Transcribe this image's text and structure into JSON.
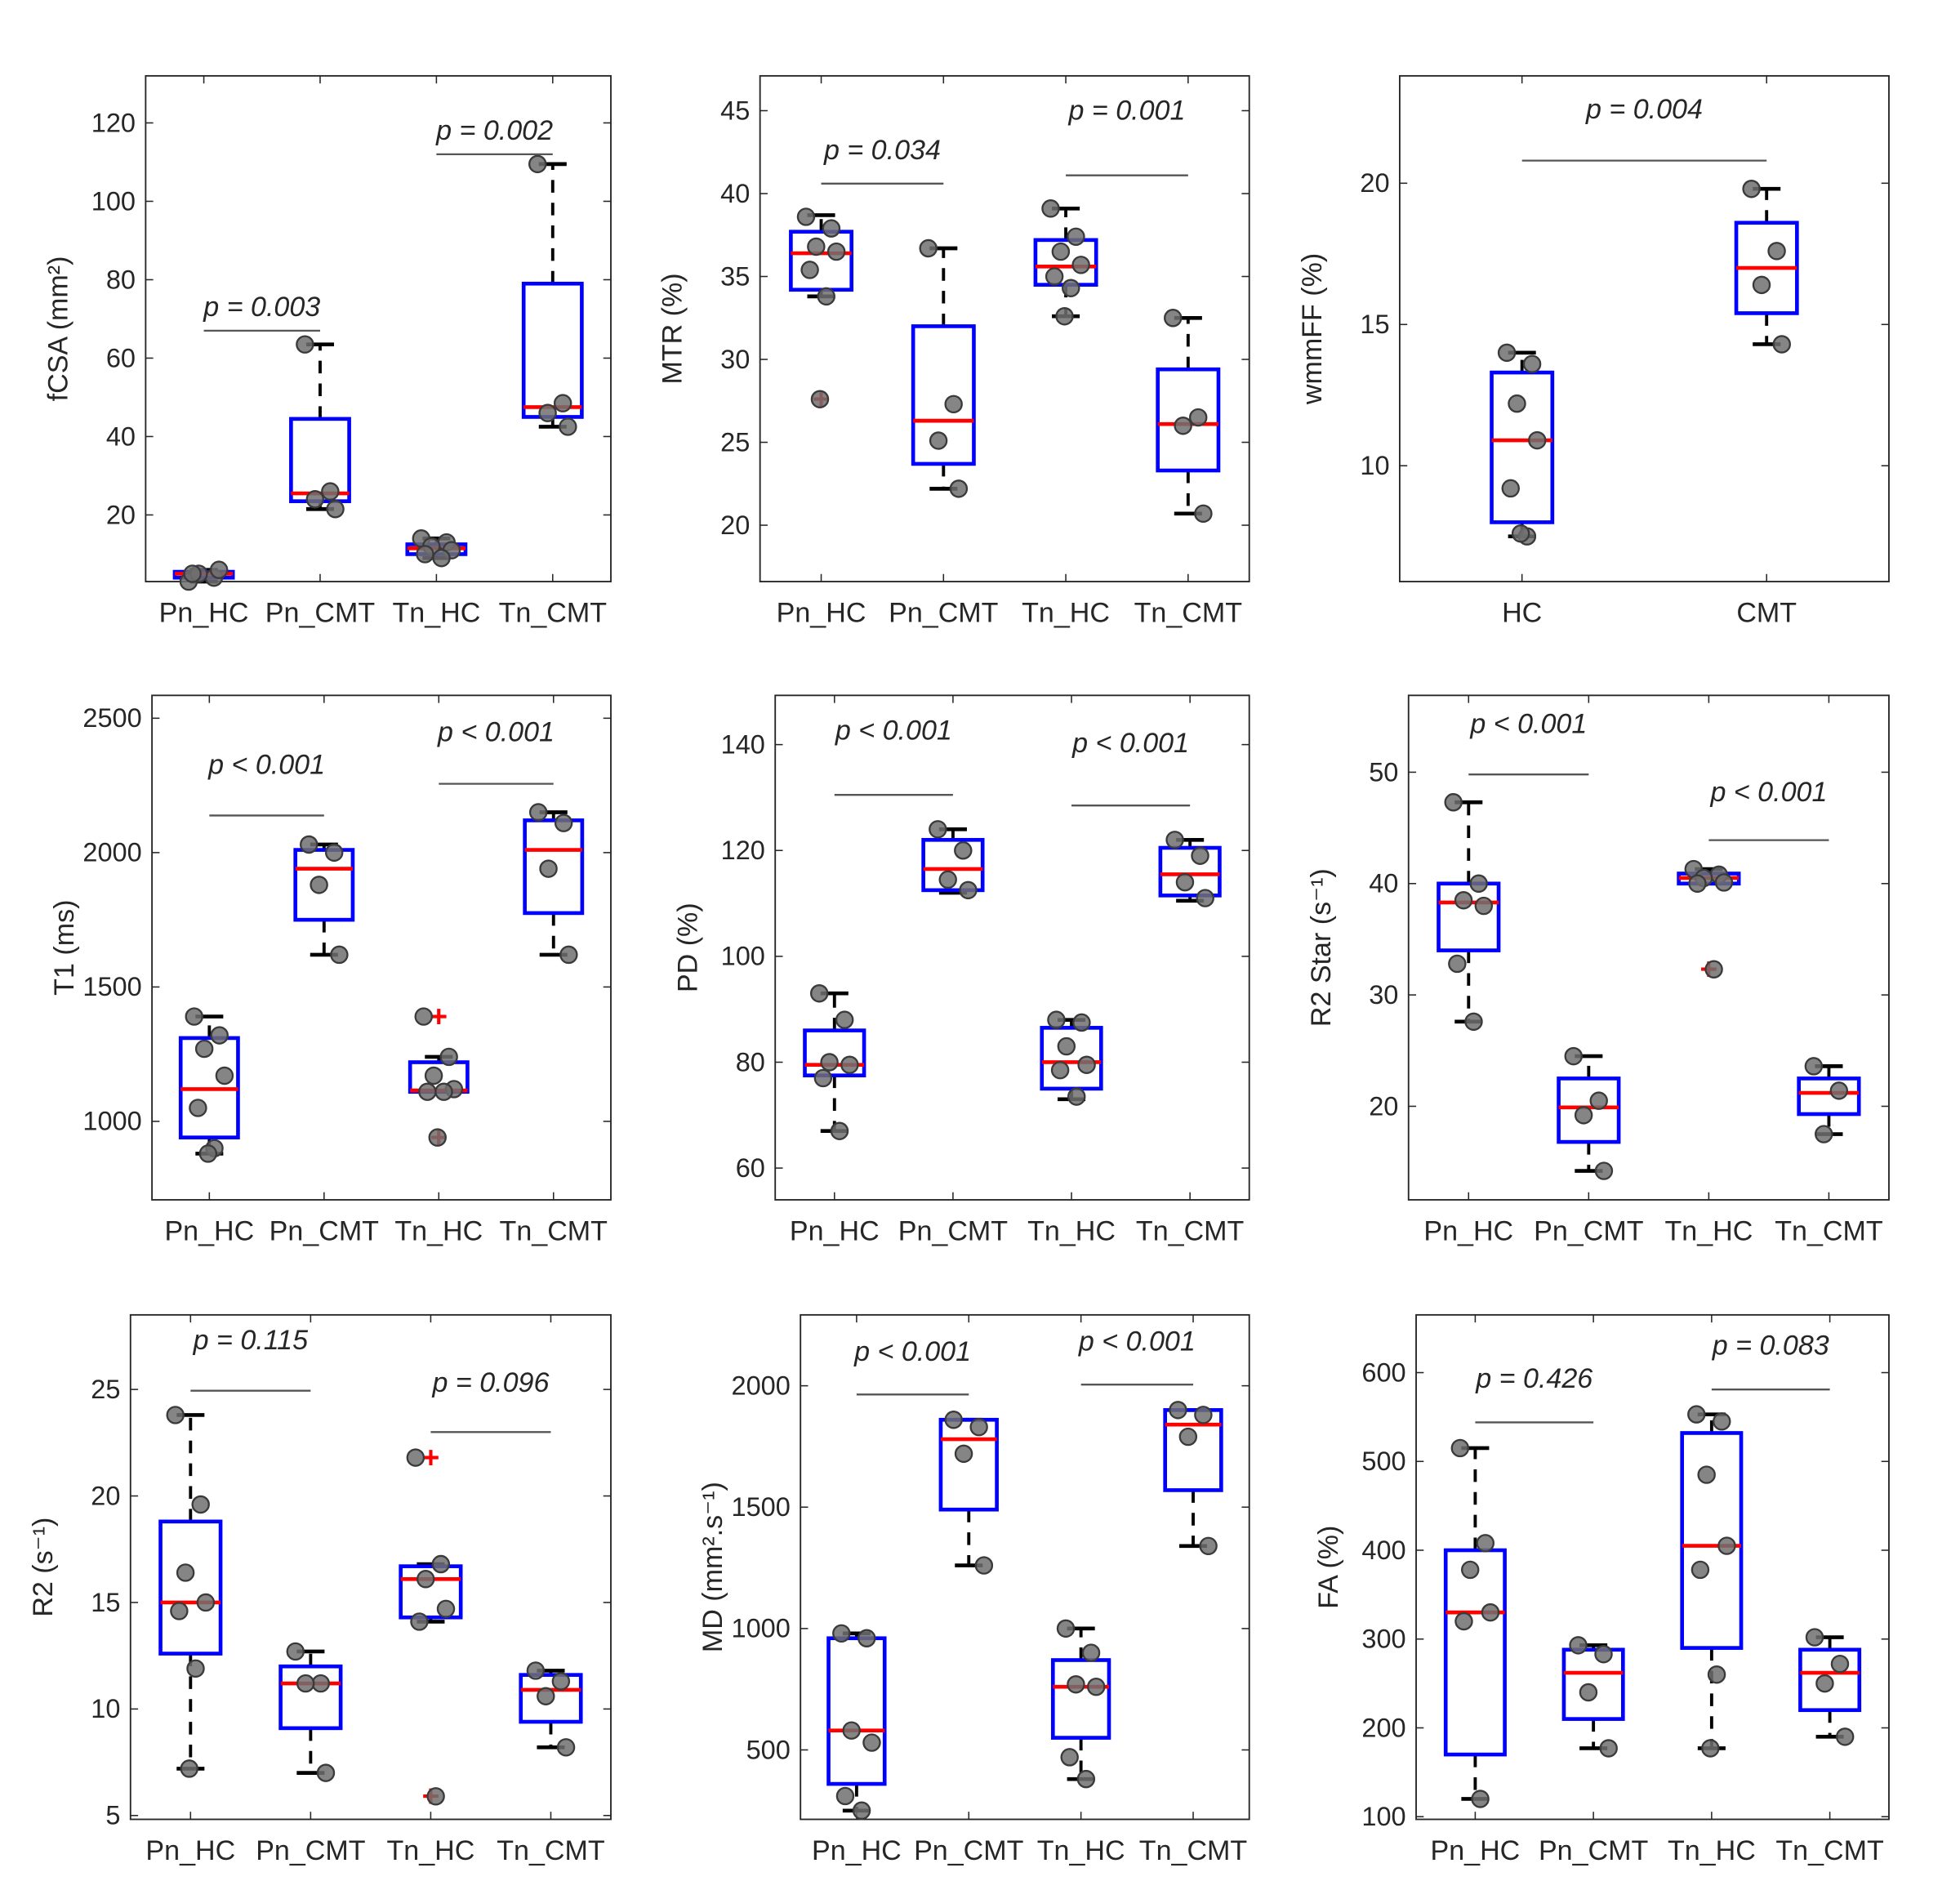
{
  "chart_data": [
    {
      "type": "box",
      "ylabel": "fCSA (mm²)",
      "ylim": [
        3,
        132
      ],
      "yticks": [
        20,
        40,
        60,
        80,
        100,
        120
      ],
      "categories": [
        "Pn_HC",
        "Pn_CMT",
        "Tn_HC",
        "Tn_CMT"
      ],
      "boxes": [
        {
          "q1": 4,
          "median": 5,
          "q3": 5.5,
          "whisker_low": 3,
          "whisker_high": 6,
          "outliers": [],
          "points": [
            3,
            4,
            5,
            6,
            5
          ]
        },
        {
          "q1": 23.5,
          "median": 25.5,
          "q3": 44.5,
          "whisker_low": 21.5,
          "whisker_high": 63.5,
          "outliers": [],
          "points": [
            63.5,
            26,
            24,
            21.5
          ]
        },
        {
          "q1": 10,
          "median": 11.5,
          "q3": 12.5,
          "whisker_low": 9,
          "whisker_high": 14,
          "outliers": [],
          "points": [
            14,
            13,
            12,
            11,
            10,
            9
          ]
        },
        {
          "q1": 45,
          "median": 47.5,
          "q3": 79,
          "whisker_low": 42.5,
          "whisker_high": 109.5,
          "outliers": [],
          "points": [
            109.5,
            48.5,
            46,
            42.5
          ]
        }
      ],
      "annotations": [
        {
          "text": "p = 0.003",
          "from": 1,
          "to": 2,
          "line_y": 67,
          "text_y": 73
        },
        {
          "text": "p = 0.002",
          "from": 3,
          "to": 4,
          "line_y": 112,
          "text_y": 118
        }
      ]
    },
    {
      "type": "box",
      "ylabel": "MTR (%)",
      "ylim": [
        16.6,
        47.1
      ],
      "yticks": [
        20,
        25,
        30,
        35,
        40,
        45
      ],
      "categories": [
        "Pn_HC",
        "Pn_CMT",
        "Tn_HC",
        "Tn_CMT"
      ],
      "boxes": [
        {
          "q1": 34.2,
          "median": 36.4,
          "q3": 37.7,
          "whisker_low": 33.8,
          "whisker_high": 38.7,
          "outliers": [
            27.6
          ],
          "points": [
            38.6,
            37.9,
            36.8,
            36.5,
            35.4,
            33.8,
            27.6
          ]
        },
        {
          "q1": 23.7,
          "median": 26.3,
          "q3": 32,
          "whisker_low": 22.2,
          "whisker_high": 36.7,
          "outliers": [],
          "points": [
            36.7,
            27.3,
            25.1,
            22.2
          ]
        },
        {
          "q1": 34.5,
          "median": 35.6,
          "q3": 37.2,
          "whisker_low": 32.6,
          "whisker_high": 39.1,
          "outliers": [],
          "points": [
            39.1,
            37.4,
            36.5,
            35.7,
            35,
            34.3,
            32.6
          ]
        },
        {
          "q1": 23.3,
          "median": 26.1,
          "q3": 29.4,
          "whisker_low": 20.7,
          "whisker_high": 32.5,
          "outliers": [],
          "points": [
            32.5,
            26.5,
            26,
            20.7
          ]
        }
      ],
      "annotations": [
        {
          "text": "p = 0.034",
          "from": 1,
          "to": 2,
          "line_y": 40.6,
          "text_y": 42.6
        },
        {
          "text": "p = 0.001",
          "from": 3,
          "to": 4,
          "line_y": 41.1,
          "text_y": 45
        }
      ]
    },
    {
      "type": "box",
      "ylabel": "wmmFF (%)",
      "ylim": [
        5.9,
        23.8
      ],
      "yticks": [
        10,
        15,
        20
      ],
      "categories": [
        "HC",
        "CMT"
      ],
      "boxes": [
        {
          "q1": 8,
          "median": 10.9,
          "q3": 13.3,
          "whisker_low": 7.5,
          "whisker_high": 14,
          "outliers": [],
          "points": [
            14,
            13.6,
            12.2,
            10.9,
            9.2,
            7.5,
            7.6
          ]
        },
        {
          "q1": 15.4,
          "median": 17,
          "q3": 18.6,
          "whisker_low": 14.3,
          "whisker_high": 19.8,
          "outliers": [],
          "points": [
            19.8,
            17.6,
            16.4,
            14.3
          ]
        }
      ],
      "annotations": [
        {
          "text": "p = 0.004",
          "from": 1,
          "to": 2,
          "line_y": 20.8,
          "text_y": 22.6
        }
      ]
    },
    {
      "type": "box",
      "ylabel": "T1 (ms)",
      "ylim": [
        708,
        2585
      ],
      "yticks": [
        1000,
        1500,
        2000,
        2500
      ],
      "categories": [
        "Pn_HC",
        "Pn_CMT",
        "Tn_HC",
        "Tn_CMT"
      ],
      "boxes": [
        {
          "q1": 940,
          "median": 1120,
          "q3": 1310,
          "whisker_low": 880,
          "whisker_high": 1390,
          "outliers": [],
          "points": [
            1390,
            1320,
            1270,
            1170,
            1050,
            900,
            880
          ]
        },
        {
          "q1": 1750,
          "median": 1940,
          "q3": 2010,
          "whisker_low": 1620,
          "whisker_high": 2030,
          "outliers": [],
          "points": [
            2030,
            2000,
            1880,
            1620
          ]
        },
        {
          "q1": 1110,
          "median": 1115,
          "q3": 1220,
          "whisker_low": 1110,
          "whisker_high": 1240,
          "outliers": [
            1390,
            940
          ],
          "points": [
            1390,
            1240,
            1170,
            1120,
            1110,
            1110,
            940
          ]
        },
        {
          "q1": 1775,
          "median": 2010,
          "q3": 2120,
          "whisker_low": 1620,
          "whisker_high": 2150,
          "outliers": [],
          "points": [
            2150,
            2110,
            1940,
            1620
          ]
        }
      ],
      "annotations": [
        {
          "text": "p < 0.001",
          "from": 1,
          "to": 2,
          "line_y": 2138,
          "text_y": 2326
        },
        {
          "text": "p < 0.001",
          "from": 3,
          "to": 4,
          "line_y": 2256,
          "text_y": 2448
        }
      ]
    },
    {
      "type": "box",
      "ylabel": "PD (%)",
      "ylim": [
        54,
        149.3
      ],
      "yticks": [
        60,
        80,
        100,
        120,
        140
      ],
      "categories": [
        "Pn_HC",
        "Pn_CMT",
        "Tn_HC",
        "Tn_CMT"
      ],
      "boxes": [
        {
          "q1": 77.5,
          "median": 79.5,
          "q3": 86,
          "whisker_low": 67,
          "whisker_high": 93,
          "outliers": [],
          "points": [
            93,
            88,
            80,
            79.5,
            77,
            67
          ]
        },
        {
          "q1": 112.5,
          "median": 116.5,
          "q3": 122,
          "whisker_low": 112,
          "whisker_high": 124,
          "outliers": [],
          "points": [
            124,
            120,
            114.5,
            112.5
          ]
        },
        {
          "q1": 75,
          "median": 80,
          "q3": 86.5,
          "whisker_low": 73,
          "whisker_high": 88,
          "outliers": [],
          "points": [
            88,
            87.5,
            83,
            79.5,
            78.5,
            73.5
          ]
        },
        {
          "q1": 111.5,
          "median": 115.5,
          "q3": 120.5,
          "whisker_low": 110.5,
          "whisker_high": 122,
          "outliers": [],
          "points": [
            122,
            119,
            114,
            111
          ]
        }
      ],
      "annotations": [
        {
          "text": "p < 0.001",
          "from": 1,
          "to": 2,
          "line_y": 130.5,
          "text_y": 142.6
        },
        {
          "text": "p < 0.001",
          "from": 3,
          "to": 4,
          "line_y": 128.5,
          "text_y": 140.2
        }
      ]
    },
    {
      "type": "box",
      "ylabel": "R2 Star (s⁻¹)",
      "ylim": [
        11.6,
        56.9
      ],
      "yticks": [
        20,
        30,
        40,
        50
      ],
      "categories": [
        "Pn_HC",
        "Pn_CMT",
        "Tn_HC",
        "Tn_CMT"
      ],
      "boxes": [
        {
          "q1": 34,
          "median": 38.3,
          "q3": 40,
          "whisker_low": 27.6,
          "whisker_high": 47.3,
          "outliers": [],
          "points": [
            47.3,
            40,
            38.5,
            38,
            32.8,
            27.6
          ]
        },
        {
          "q1": 16.8,
          "median": 19.9,
          "q3": 22.5,
          "whisker_low": 14.2,
          "whisker_high": 24.5,
          "outliers": [],
          "points": [
            24.5,
            20.5,
            19.2,
            14.2
          ]
        },
        {
          "q1": 40,
          "median": 40.5,
          "q3": 40.9,
          "whisker_low": 40,
          "whisker_high": 41.3,
          "outliers": [
            32.3
          ],
          "points": [
            41.3,
            40.8,
            40.5,
            40.1,
            40,
            32.3
          ]
        },
        {
          "q1": 19.3,
          "median": 21.2,
          "q3": 22.5,
          "whisker_low": 17.5,
          "whisker_high": 23.6,
          "outliers": [],
          "points": [
            23.6,
            21.4,
            17.5
          ]
        }
      ],
      "annotations": [
        {
          "text": "p < 0.001",
          "from": 1,
          "to": 2,
          "line_y": 49.8,
          "text_y": 54.3
        },
        {
          "text": "p < 0.001",
          "from": 3,
          "to": 4,
          "line_y": 43.9,
          "text_y": 48.2
        }
      ]
    },
    {
      "type": "box",
      "ylabel": "R2 (s⁻¹)",
      "ylim": [
        4.82,
        28.5
      ],
      "yticks": [
        5,
        10,
        15,
        20,
        25
      ],
      "categories": [
        "Pn_HC",
        "Pn_CMT",
        "Tn_HC",
        "Tn_CMT"
      ],
      "boxes": [
        {
          "q1": 12.6,
          "median": 15,
          "q3": 18.8,
          "whisker_low": 7.2,
          "whisker_high": 23.8,
          "outliers": [],
          "points": [
            23.8,
            19.6,
            16.4,
            15,
            14.6,
            11.9,
            7.2
          ]
        },
        {
          "q1": 9.1,
          "median": 11.2,
          "q3": 12,
          "whisker_low": 7,
          "whisker_high": 12.7,
          "outliers": [],
          "points": [
            12.7,
            11.2,
            11.2,
            7
          ]
        },
        {
          "q1": 14.3,
          "median": 16.1,
          "q3": 16.7,
          "whisker_low": 14.1,
          "whisker_high": 16.8,
          "outliers": [
            21.8,
            5.9
          ],
          "points": [
            21.8,
            16.8,
            16.1,
            14.7,
            14.1,
            5.9
          ]
        },
        {
          "q1": 9.4,
          "median": 10.9,
          "q3": 11.6,
          "whisker_low": 8.2,
          "whisker_high": 11.8,
          "outliers": [],
          "points": [
            11.8,
            11.3,
            10.6,
            8.2
          ]
        }
      ],
      "annotations": [
        {
          "text": "p = 0.115",
          "from": 1,
          "to": 2,
          "line_y": 24.94,
          "text_y": 27.3
        },
        {
          "text": "p = 0.096",
          "from": 3,
          "to": 4,
          "line_y": 23,
          "text_y": 25.3
        }
      ]
    },
    {
      "type": "box",
      "ylabel": "MD (mm².s⁻¹)",
      "ylim": [
        214,
        2292
      ],
      "yticks": [
        500,
        1000,
        1500,
        2000
      ],
      "categories": [
        "Pn_HC",
        "Pn_CMT",
        "Tn_HC",
        "Tn_CMT"
      ],
      "boxes": [
        {
          "q1": 360,
          "median": 580,
          "q3": 960,
          "whisker_low": 250,
          "whisker_high": 980,
          "outliers": [],
          "points": [
            980,
            960,
            580,
            530,
            310,
            250
          ]
        },
        {
          "q1": 1490,
          "median": 1780,
          "q3": 1860,
          "whisker_low": 1260,
          "whisker_high": 1860,
          "outliers": [],
          "points": [
            1860,
            1830,
            1720,
            1260
          ]
        },
        {
          "q1": 550,
          "median": 760,
          "q3": 870,
          "whisker_low": 380,
          "whisker_high": 1000,
          "outliers": [],
          "points": [
            1000,
            900,
            770,
            760,
            470,
            380
          ]
        },
        {
          "q1": 1570,
          "median": 1840,
          "q3": 1900,
          "whisker_low": 1340,
          "whisker_high": 1900,
          "outliers": [],
          "points": [
            1900,
            1880,
            1790,
            1340
          ]
        }
      ],
      "annotations": [
        {
          "text": "p < 0.001",
          "from": 1,
          "to": 2,
          "line_y": 1964,
          "text_y": 2140
        },
        {
          "text": "p < 0.001",
          "from": 3,
          "to": 4,
          "line_y": 2005,
          "text_y": 2182
        }
      ]
    },
    {
      "type": "box",
      "ylabel": "FA (%)",
      "ylim": [
        97,
        665
      ],
      "yticks": [
        100,
        200,
        300,
        400,
        500,
        600
      ],
      "categories": [
        "Pn_HC",
        "Pn_CMT",
        "Tn_HC",
        "Tn_CMT"
      ],
      "boxes": [
        {
          "q1": 170,
          "median": 330,
          "q3": 400,
          "whisker_low": 120,
          "whisker_high": 515,
          "outliers": [],
          "points": [
            515,
            408,
            378,
            330,
            320,
            120
          ]
        },
        {
          "q1": 210,
          "median": 262,
          "q3": 288,
          "whisker_low": 177,
          "whisker_high": 293,
          "outliers": [],
          "points": [
            293,
            283,
            240,
            177
          ]
        },
        {
          "q1": 290,
          "median": 405,
          "q3": 532,
          "whisker_low": 177,
          "whisker_high": 553,
          "outliers": [],
          "points": [
            553,
            545,
            485,
            405,
            378,
            260,
            177
          ]
        },
        {
          "q1": 220,
          "median": 262,
          "q3": 288,
          "whisker_low": 190,
          "whisker_high": 302,
          "outliers": [],
          "points": [
            302,
            272,
            250,
            190
          ]
        }
      ],
      "annotations": [
        {
          "text": "p = 0.426",
          "from": 1,
          "to": 2,
          "line_y": 544,
          "text_y": 593
        },
        {
          "text": "p = 0.083",
          "from": 3,
          "to": 4,
          "line_y": 581,
          "text_y": 630
        }
      ]
    }
  ],
  "colors": {
    "box": "#0000ff",
    "median": "#ff0000",
    "whisker": "#000000",
    "point": "#707070",
    "outlier": "#ff0000"
  }
}
